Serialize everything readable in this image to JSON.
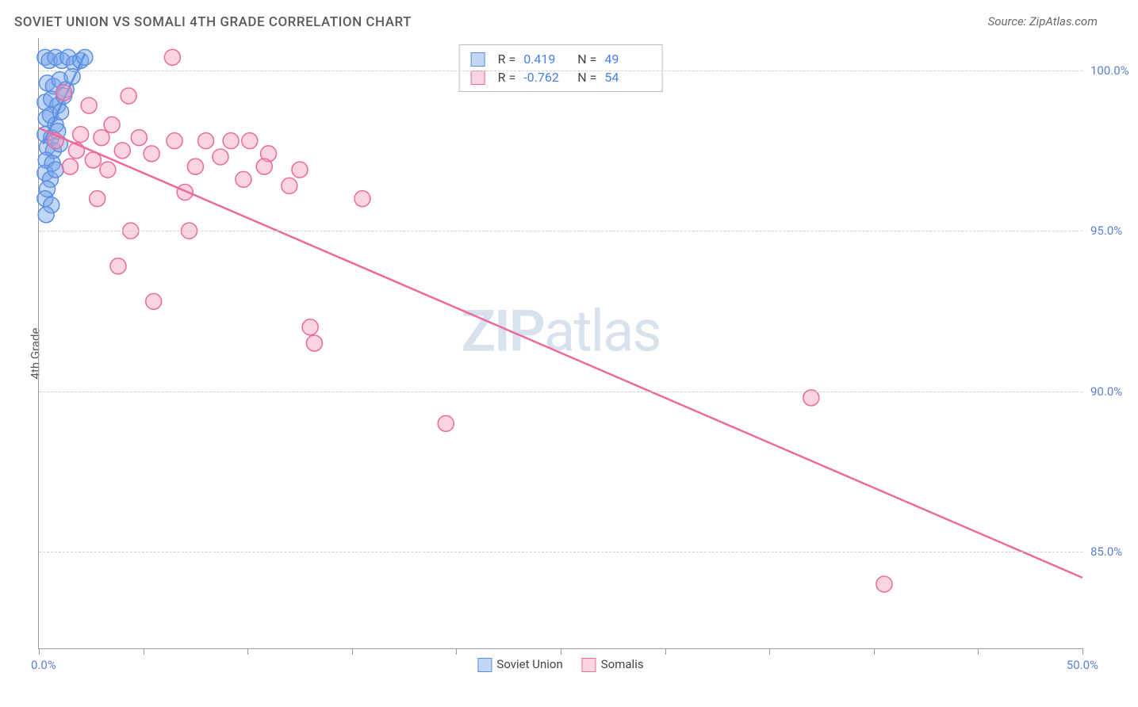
{
  "title": "SOVIET UNION VS SOMALI 4TH GRADE CORRELATION CHART",
  "source": "Source: ZipAtlas.com",
  "ylabel": "4th Grade",
  "watermark_zip": "ZIP",
  "watermark_atlas": "atlas",
  "chart": {
    "type": "scatter",
    "background_color": "#ffffff",
    "grid_color": "#d0d0d0",
    "axis_color": "#999999",
    "label_color": "#5b7fd6",
    "text_color": "#5a5a5a",
    "marker_radius": 10,
    "marker_stroke_width": 1.5,
    "line_width": 2.5,
    "xlim": [
      0,
      50
    ],
    "ylim": [
      82,
      101
    ],
    "x_ticks": [
      0,
      5,
      10,
      15,
      20,
      25,
      30,
      35,
      40,
      45,
      50
    ],
    "y_ticks": [
      85,
      90,
      95,
      100
    ],
    "x_tick_labels": {
      "min": "0.0%",
      "max": "50.0%"
    },
    "y_tick_labels": [
      "85.0%",
      "90.0%",
      "95.0%",
      "100.0%"
    ],
    "series": [
      {
        "name": "Soviet Union",
        "color_fill": "rgba(120,165,235,0.45)",
        "color_stroke": "#5b8fe0",
        "R": "0.419",
        "N": "49",
        "trend": {
          "x1": 0.2,
          "y1": 97.7,
          "x2": 2.2,
          "y2": 100.5
        },
        "points": [
          [
            0.3,
            100.4
          ],
          [
            0.5,
            100.3
          ],
          [
            0.8,
            100.4
          ],
          [
            1.1,
            100.3
          ],
          [
            1.4,
            100.4
          ],
          [
            1.7,
            100.2
          ],
          [
            2.0,
            100.3
          ],
          [
            2.2,
            100.4
          ],
          [
            0.4,
            99.6
          ],
          [
            0.7,
            99.5
          ],
          [
            1.0,
            99.7
          ],
          [
            1.3,
            99.4
          ],
          [
            1.6,
            99.8
          ],
          [
            0.3,
            99.0
          ],
          [
            0.6,
            99.1
          ],
          [
            0.9,
            98.9
          ],
          [
            1.2,
            99.2
          ],
          [
            0.35,
            98.5
          ],
          [
            0.55,
            98.6
          ],
          [
            0.8,
            98.3
          ],
          [
            1.05,
            98.7
          ],
          [
            0.3,
            98.0
          ],
          [
            0.6,
            97.9
          ],
          [
            0.9,
            98.1
          ],
          [
            0.4,
            97.6
          ],
          [
            0.7,
            97.5
          ],
          [
            1.0,
            97.7
          ],
          [
            0.35,
            97.2
          ],
          [
            0.65,
            97.1
          ],
          [
            0.3,
            96.8
          ],
          [
            0.55,
            96.6
          ],
          [
            0.8,
            96.9
          ],
          [
            0.4,
            96.3
          ],
          [
            0.3,
            96.0
          ],
          [
            0.6,
            95.8
          ],
          [
            0.35,
            95.5
          ]
        ]
      },
      {
        "name": "Somalis",
        "color_fill": "rgba(245,160,190,0.45)",
        "color_stroke": "#ec6a9a",
        "R": "-0.762",
        "N": "54",
        "trend": {
          "x1": 0,
          "y1": 98.2,
          "x2": 50,
          "y2": 84.2
        },
        "points": [
          [
            6.4,
            100.4
          ],
          [
            1.2,
            99.3
          ],
          [
            2.4,
            98.9
          ],
          [
            4.3,
            99.2
          ],
          [
            3.5,
            98.3
          ],
          [
            2.0,
            98.0
          ],
          [
            0.8,
            97.8
          ],
          [
            1.8,
            97.5
          ],
          [
            3.0,
            97.9
          ],
          [
            4.8,
            97.9
          ],
          [
            6.5,
            97.8
          ],
          [
            8.0,
            97.8
          ],
          [
            2.6,
            97.2
          ],
          [
            4.0,
            97.5
          ],
          [
            5.4,
            97.4
          ],
          [
            1.5,
            97.0
          ],
          [
            3.3,
            96.9
          ],
          [
            11.0,
            97.4
          ],
          [
            9.2,
            97.8
          ],
          [
            10.1,
            97.8
          ],
          [
            8.7,
            97.3
          ],
          [
            10.8,
            97.0
          ],
          [
            7.5,
            97.0
          ],
          [
            9.8,
            96.6
          ],
          [
            12.5,
            96.9
          ],
          [
            12.0,
            96.4
          ],
          [
            7.0,
            96.2
          ],
          [
            2.8,
            96.0
          ],
          [
            15.5,
            96.0
          ],
          [
            4.4,
            95.0
          ],
          [
            7.2,
            95.0
          ],
          [
            3.8,
            93.9
          ],
          [
            5.5,
            92.8
          ],
          [
            13.0,
            92.0
          ],
          [
            13.2,
            91.5
          ],
          [
            19.5,
            89.0
          ],
          [
            37.0,
            89.8
          ],
          [
            40.5,
            84.0
          ]
        ]
      }
    ],
    "legend": {
      "position": "top-center",
      "R_label": "R =",
      "N_label": "N ="
    }
  }
}
